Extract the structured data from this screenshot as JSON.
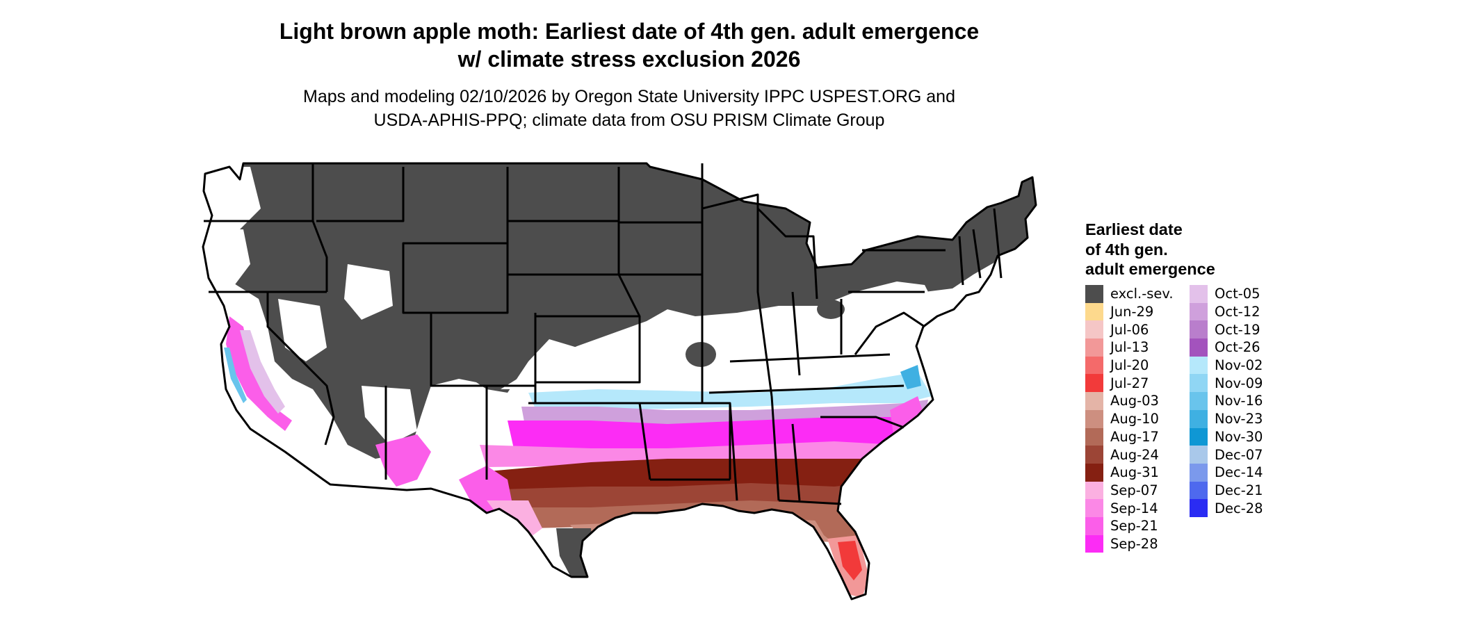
{
  "title_lines": [
    "Light brown apple moth: Earliest date of 4th gen. adult emergence",
    "w/ climate stress exclusion 2026"
  ],
  "subtitle_lines": [
    "Maps and modeling 02/10/2026 by Oregon State University IPPC USPEST.ORG and",
    "USDA-APHIS-PPQ; climate data from OSU PRISM Climate Group"
  ],
  "legend": {
    "title_lines": [
      "Earliest date",
      "of 4th gen.",
      "adult emergence"
    ],
    "column1": [
      {
        "label": "excl.-sev.",
        "color": "#4d4d4d"
      },
      {
        "label": "Jun-29",
        "color": "#fdd98d"
      },
      {
        "label": "Jul-06",
        "color": "#f5c6c6"
      },
      {
        "label": "Jul-13",
        "color": "#f29898"
      },
      {
        "label": "Jul-20",
        "color": "#f46a6a"
      },
      {
        "label": "Jul-27",
        "color": "#f23a3a"
      },
      {
        "label": "Aug-03",
        "color": "#e4b4a7"
      },
      {
        "label": "Aug-10",
        "color": "#cd8f80"
      },
      {
        "label": "Aug-17",
        "color": "#b26a58"
      },
      {
        "label": "Aug-24",
        "color": "#9c4536"
      },
      {
        "label": "Aug-31",
        "color": "#852012"
      },
      {
        "label": "Sep-07",
        "color": "#fbb0e1"
      },
      {
        "label": "Sep-14",
        "color": "#fb88e6"
      },
      {
        "label": "Sep-21",
        "color": "#fb5ee9"
      },
      {
        "label": "Sep-28",
        "color": "#fc2cf5"
      }
    ],
    "column2": [
      {
        "label": "Oct-05",
        "color": "#e3c1ea"
      },
      {
        "label": "Oct-12",
        "color": "#cfa0dc"
      },
      {
        "label": "Oct-19",
        "color": "#b97ecc"
      },
      {
        "label": "Oct-26",
        "color": "#a353bd"
      },
      {
        "label": "Nov-02",
        "color": "#b5e8fb"
      },
      {
        "label": "Nov-09",
        "color": "#90d6f4"
      },
      {
        "label": "Nov-16",
        "color": "#69c4ec"
      },
      {
        "label": "Nov-23",
        "color": "#3fb0e2"
      },
      {
        "label": "Nov-30",
        "color": "#0f97d4"
      },
      {
        "label": "Dec-07",
        "color": "#a9c8ea"
      },
      {
        "label": "Dec-14",
        "color": "#7b99ec"
      },
      {
        "label": "Dec-21",
        "color": "#4e69ee"
      },
      {
        "label": "Dec-28",
        "color": "#2a2cf3"
      }
    ]
  },
  "map": {
    "region": "Contiguous United States",
    "state_border_color": "#000000",
    "no_data_color": "#ffffff"
  }
}
